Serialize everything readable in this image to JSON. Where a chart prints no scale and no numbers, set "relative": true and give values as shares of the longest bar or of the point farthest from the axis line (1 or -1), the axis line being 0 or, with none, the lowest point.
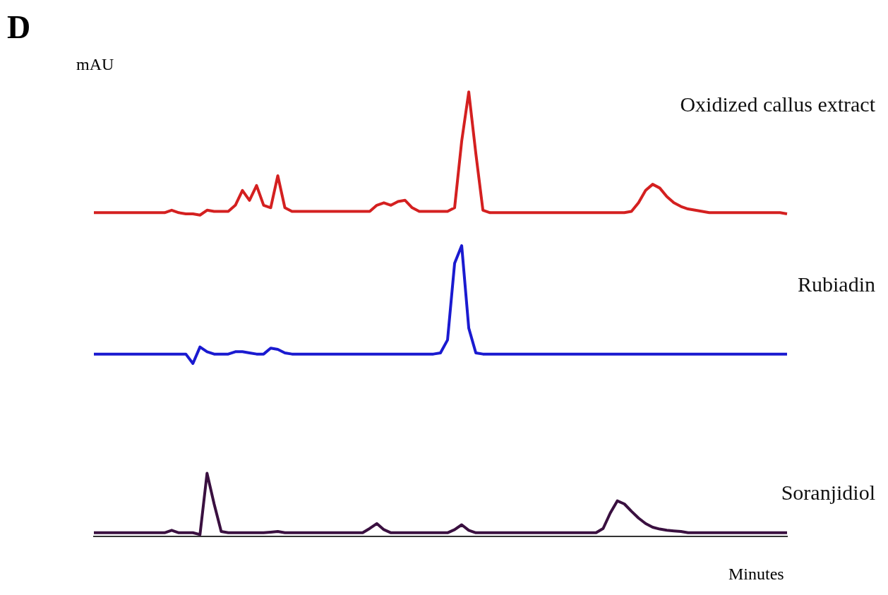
{
  "chart_data": [
    {
      "type": "line",
      "title": "D",
      "ylabel": "mAU",
      "relative": true,
      "categories": [
        null,
        null,
        null,
        null,
        null,
        null,
        null,
        null,
        null,
        null,
        null,
        null,
        null,
        null,
        null,
        null,
        null,
        null,
        null,
        null,
        null,
        null,
        null,
        null,
        null,
        null,
        null,
        null,
        null,
        null,
        null,
        null,
        null,
        null,
        null,
        null,
        null,
        null,
        null,
        null,
        null,
        null,
        null,
        null,
        null,
        null,
        null,
        null,
        null,
        null,
        null,
        null,
        null,
        null,
        null,
        null,
        null,
        null,
        null,
        null,
        null,
        null,
        null,
        null,
        null,
        null,
        null,
        null,
        null,
        null,
        null,
        null,
        null,
        null,
        null,
        null,
        null,
        null,
        null,
        null,
        null,
        null,
        null,
        null,
        null,
        null,
        null,
        null,
        null,
        null,
        null,
        null,
        null,
        null,
        null,
        null,
        null,
        null,
        null
      ],
      "tick_labels": false,
      "grid": false,
      "legend": false,
      "marker": "none",
      "series": [
        {
          "name": "Oxidized callus extract",
          "color": "#d42020",
          "values": [
            0.02,
            0.02,
            0.02,
            0.02,
            0.02,
            0.02,
            0.02,
            0.02,
            0.02,
            0.02,
            0.02,
            0.04,
            0.02,
            0.01,
            0.01,
            0.0,
            0.04,
            0.03,
            0.03,
            0.03,
            0.08,
            0.2,
            0.12,
            0.24,
            0.08,
            0.06,
            0.32,
            0.06,
            0.03,
            0.03,
            0.03,
            0.03,
            0.03,
            0.03,
            0.03,
            0.03,
            0.03,
            0.03,
            0.03,
            0.03,
            0.08,
            0.1,
            0.08,
            0.11,
            0.12,
            0.06,
            0.03,
            0.03,
            0.03,
            0.03,
            0.03,
            0.06,
            0.6,
            1.0,
            0.5,
            0.04,
            0.02,
            0.02,
            0.02,
            0.02,
            0.02,
            0.02,
            0.02,
            0.02,
            0.02,
            0.02,
            0.02,
            0.02,
            0.02,
            0.02,
            0.02,
            0.02,
            0.02,
            0.02,
            0.02,
            0.02,
            0.03,
            0.1,
            0.2,
            0.25,
            0.22,
            0.15,
            0.1,
            0.07,
            0.05,
            0.04,
            0.03,
            0.02,
            0.02,
            0.02,
            0.02,
            0.02,
            0.02,
            0.02,
            0.02,
            0.02,
            0.02,
            0.02,
            0.01
          ]
        }
      ]
    },
    {
      "type": "line",
      "relative": true,
      "categories": [
        null,
        null,
        null,
        null,
        null,
        null,
        null,
        null,
        null,
        null,
        null,
        null,
        null,
        null,
        null,
        null,
        null,
        null,
        null,
        null,
        null,
        null,
        null,
        null,
        null,
        null,
        null,
        null,
        null,
        null,
        null,
        null,
        null,
        null,
        null,
        null,
        null,
        null,
        null,
        null,
        null,
        null,
        null,
        null,
        null,
        null,
        null,
        null,
        null,
        null,
        null,
        null,
        null,
        null,
        null,
        null,
        null,
        null,
        null,
        null,
        null,
        null,
        null,
        null,
        null,
        null,
        null,
        null,
        null,
        null,
        null,
        null,
        null,
        null,
        null,
        null,
        null,
        null,
        null,
        null,
        null,
        null,
        null,
        null,
        null,
        null,
        null,
        null,
        null,
        null,
        null,
        null,
        null,
        null,
        null,
        null,
        null,
        null,
        null
      ],
      "tick_labels": false,
      "grid": false,
      "legend": false,
      "marker": "none",
      "series": [
        {
          "name": "Rubiadin",
          "color": "#1a1ad0",
          "values": [
            0.08,
            0.08,
            0.08,
            0.08,
            0.08,
            0.08,
            0.08,
            0.08,
            0.08,
            0.08,
            0.08,
            0.08,
            0.08,
            0.08,
            0.0,
            0.14,
            0.1,
            0.08,
            0.08,
            0.08,
            0.1,
            0.1,
            0.09,
            0.08,
            0.08,
            0.13,
            0.12,
            0.09,
            0.08,
            0.08,
            0.08,
            0.08,
            0.08,
            0.08,
            0.08,
            0.08,
            0.08,
            0.08,
            0.08,
            0.08,
            0.08,
            0.08,
            0.08,
            0.08,
            0.08,
            0.08,
            0.08,
            0.08,
            0.08,
            0.09,
            0.2,
            0.85,
            1.0,
            0.3,
            0.09,
            0.08,
            0.08,
            0.08,
            0.08,
            0.08,
            0.08,
            0.08,
            0.08,
            0.08,
            0.08,
            0.08,
            0.08,
            0.08,
            0.08,
            0.08,
            0.08,
            0.08,
            0.08,
            0.08,
            0.08,
            0.08,
            0.08,
            0.08,
            0.08,
            0.08,
            0.08,
            0.08,
            0.08,
            0.08,
            0.08,
            0.08,
            0.08,
            0.08,
            0.08,
            0.08,
            0.08,
            0.08,
            0.08,
            0.08,
            0.08,
            0.08,
            0.08,
            0.08,
            0.08
          ]
        }
      ]
    },
    {
      "type": "line",
      "xlabel": "Minutes",
      "relative": true,
      "categories": [
        null,
        null,
        null,
        null,
        null,
        null,
        null,
        null,
        null,
        null,
        null,
        null,
        null,
        null,
        null,
        null,
        null,
        null,
        null,
        null,
        null,
        null,
        null,
        null,
        null,
        null,
        null,
        null,
        null,
        null,
        null,
        null,
        null,
        null,
        null,
        null,
        null,
        null,
        null,
        null,
        null,
        null,
        null,
        null,
        null,
        null,
        null,
        null,
        null,
        null,
        null,
        null,
        null,
        null,
        null,
        null,
        null,
        null,
        null,
        null,
        null,
        null,
        null,
        null,
        null,
        null,
        null,
        null,
        null,
        null,
        null,
        null,
        null,
        null,
        null,
        null,
        null,
        null,
        null,
        null,
        null,
        null,
        null,
        null,
        null,
        null,
        null,
        null,
        null,
        null,
        null,
        null,
        null,
        null,
        null,
        null,
        null,
        null,
        null
      ],
      "tick_labels": false,
      "grid": false,
      "legend": false,
      "marker": "none",
      "series": [
        {
          "name": "Soranjidiol",
          "color": "#3a1040",
          "values": [
            0.03,
            0.03,
            0.03,
            0.03,
            0.03,
            0.03,
            0.03,
            0.03,
            0.03,
            0.03,
            0.03,
            0.07,
            0.03,
            0.03,
            0.03,
            0.0,
            1.0,
            0.5,
            0.05,
            0.03,
            0.03,
            0.03,
            0.03,
            0.03,
            0.03,
            0.04,
            0.05,
            0.03,
            0.03,
            0.03,
            0.03,
            0.03,
            0.03,
            0.03,
            0.03,
            0.03,
            0.03,
            0.03,
            0.03,
            0.1,
            0.18,
            0.08,
            0.03,
            0.03,
            0.03,
            0.03,
            0.03,
            0.03,
            0.03,
            0.03,
            0.03,
            0.08,
            0.16,
            0.07,
            0.03,
            0.03,
            0.03,
            0.03,
            0.03,
            0.03,
            0.03,
            0.03,
            0.03,
            0.03,
            0.03,
            0.03,
            0.03,
            0.03,
            0.03,
            0.03,
            0.03,
            0.03,
            0.1,
            0.35,
            0.55,
            0.5,
            0.38,
            0.27,
            0.18,
            0.12,
            0.09,
            0.07,
            0.06,
            0.05,
            0.03,
            0.03,
            0.03,
            0.03,
            0.03,
            0.03,
            0.03,
            0.03,
            0.03,
            0.03,
            0.03,
            0.03,
            0.03,
            0.03,
            0.03
          ]
        }
      ]
    }
  ]
}
